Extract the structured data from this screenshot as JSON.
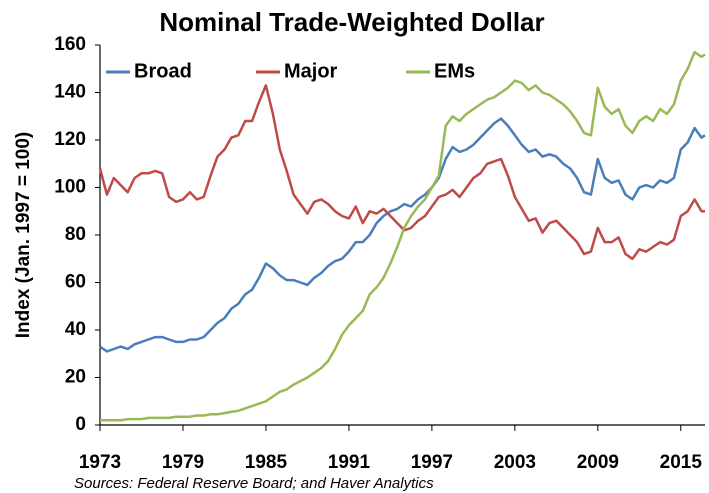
{
  "chart_data": {
    "type": "line",
    "title": "Nominal Trade-Weighted Dollar",
    "y_label": "Index (Jan. 1997 = 100)",
    "source": "Sources: Federal Reserve Board; and Haver Analytics",
    "x": [
      1973,
      1973.5,
      1974,
      1974.5,
      1975,
      1975.5,
      1976,
      1976.5,
      1977,
      1977.5,
      1978,
      1978.5,
      1979,
      1979.5,
      1980,
      1980.5,
      1981,
      1981.5,
      1982,
      1982.5,
      1983,
      1983.5,
      1984,
      1984.5,
      1985,
      1985.5,
      1986,
      1986.5,
      1987,
      1987.5,
      1988,
      1988.5,
      1989,
      1989.5,
      1990,
      1990.5,
      1991,
      1991.5,
      1992,
      1992.5,
      1993,
      1993.5,
      1994,
      1994.5,
      1995,
      1995.5,
      1996,
      1996.5,
      1997,
      1997.5,
      1998,
      1998.5,
      1999,
      1999.5,
      2000,
      2000.5,
      2001,
      2001.5,
      2002,
      2002.5,
      2003,
      2003.5,
      2004,
      2004.5,
      2005,
      2005.5,
      2006,
      2006.5,
      2007,
      2007.5,
      2008,
      2008.5,
      2009,
      2009.5,
      2010,
      2010.5,
      2011,
      2011.5,
      2012,
      2012.5,
      2013,
      2013.5,
      2014,
      2014.5,
      2015,
      2015.5,
      2016,
      2016.5,
      2016.75
    ],
    "series": [
      {
        "name": "Broad",
        "color": "#4a7ebb",
        "values": [
          33,
          31,
          32,
          33,
          32,
          34,
          35,
          36,
          37,
          37,
          36,
          35,
          35,
          36,
          36,
          37,
          40,
          43,
          45,
          49,
          51,
          55,
          57,
          62,
          68,
          66,
          63,
          61,
          61,
          60,
          59,
          62,
          64,
          67,
          69,
          70,
          73,
          77,
          77,
          80,
          85,
          88,
          90,
          91,
          93,
          92,
          95,
          97,
          100,
          104,
          112,
          117,
          115,
          116,
          118,
          121,
          124,
          127,
          129,
          126,
          122,
          118,
          115,
          116,
          113,
          114,
          113,
          110,
          108,
          104,
          98,
          97,
          112,
          104,
          102,
          103,
          97,
          95,
          100,
          101,
          100,
          103,
          102,
          104,
          116,
          119,
          125,
          121,
          122
        ]
      },
      {
        "name": "Major",
        "color": "#be4b48",
        "values": [
          108,
          97,
          104,
          101,
          98,
          104,
          106,
          106,
          107,
          106,
          96,
          94,
          95,
          98,
          95,
          96,
          105,
          113,
          116,
          121,
          122,
          128,
          128,
          136,
          143,
          131,
          116,
          107,
          97,
          93,
          89,
          94,
          95,
          93,
          90,
          88,
          87,
          92,
          85,
          90,
          89,
          91,
          88,
          85,
          82,
          83,
          86,
          88,
          92,
          96,
          97,
          99,
          96,
          100,
          104,
          106,
          110,
          111,
          112,
          105,
          96,
          91,
          86,
          87,
          81,
          85,
          86,
          83,
          80,
          77,
          72,
          73,
          83,
          77,
          77,
          79,
          72,
          70,
          74,
          73,
          75,
          77,
          76,
          78,
          88,
          90,
          95,
          90,
          90
        ]
      },
      {
        "name": "EMs",
        "color": "#98b954",
        "values": [
          2,
          2,
          2,
          2,
          2.5,
          2.5,
          2.5,
          3,
          3,
          3,
          3,
          3.5,
          3.5,
          3.5,
          4,
          4,
          4.5,
          4.5,
          5,
          5.5,
          6,
          7,
          8,
          9,
          10,
          12,
          14,
          15,
          17,
          18.5,
          20,
          22,
          24,
          27,
          32,
          38,
          42,
          45,
          48,
          55,
          58,
          62,
          68,
          75,
          83,
          88,
          92,
          95,
          100,
          105,
          126,
          130,
          128,
          131,
          133,
          135,
          137,
          138,
          140,
          142,
          145,
          144,
          141,
          143,
          140,
          139,
          137,
          135,
          132,
          128,
          123,
          122,
          142,
          134,
          131,
          133,
          126,
          123,
          128,
          130,
          128,
          133,
          131,
          135,
          145,
          150,
          157,
          155,
          156
        ]
      }
    ],
    "xlim": [
      1973,
      2016.75
    ],
    "xticks": [
      1973,
      1979,
      1985,
      1991,
      1997,
      2003,
      2009,
      2015
    ],
    "ylim": [
      0,
      160
    ],
    "yticks": [
      0,
      20,
      40,
      60,
      80,
      100,
      120,
      140,
      160
    ],
    "legend": "top"
  }
}
